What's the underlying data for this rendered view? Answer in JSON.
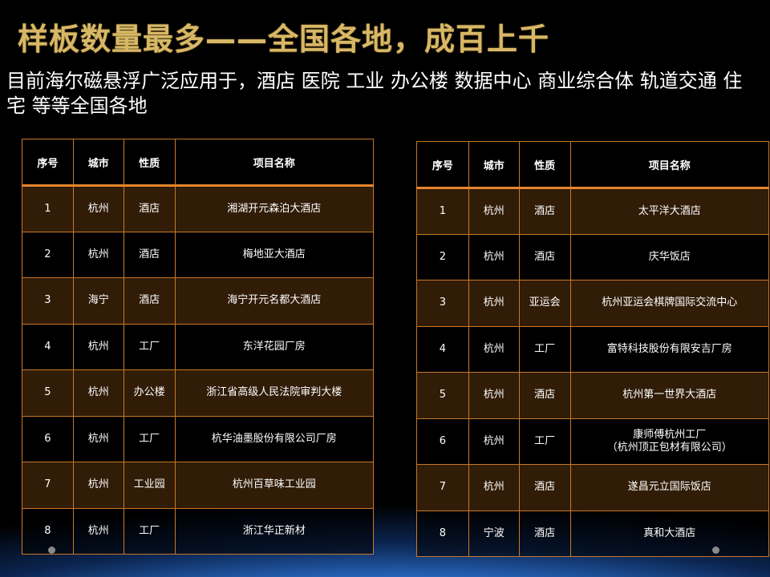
{
  "title": "样板数量最多——全国各地，成百上千",
  "subtitle": "目前海尔磁悬浮广泛应用于，酒店 医院 工业 办公楼 数据中心 商业综合体 轨道交通 住宅 等等全国各地",
  "headers": [
    "序号",
    "城市",
    "性质",
    "项目名称"
  ],
  "table_left": [
    [
      "1",
      "杭州",
      "酒店",
      "湘湖开元森泊大酒店"
    ],
    [
      "2",
      "杭州",
      "酒店",
      "梅地亚大酒店"
    ],
    [
      "3",
      "海宁",
      "酒店",
      "海宁开元名都大酒店"
    ],
    [
      "4",
      "杭州",
      "工厂",
      "东洋花园厂房"
    ],
    [
      "5",
      "杭州",
      "办公楼",
      "浙江省高级人民法院审判大楼"
    ],
    [
      "6",
      "杭州",
      "工厂",
      "杭华油墨股份有限公司厂房"
    ],
    [
      "7",
      "杭州",
      "工业园",
      "杭州百草味工业园"
    ],
    [
      "8",
      "杭州",
      "工厂",
      "浙江华正新材"
    ]
  ],
  "table_right": [
    [
      "1",
      "杭州",
      "酒店",
      "太平洋大酒店"
    ],
    [
      "2",
      "杭州",
      "酒店",
      "庆华饭店"
    ],
    [
      "3",
      "杭州",
      "亚运会",
      "杭州亚运会棋牌国际交流中心"
    ],
    [
      "4",
      "杭州",
      "工厂",
      "富特科技股份有限安吉厂房"
    ],
    [
      "5",
      "杭州",
      "酒店",
      "杭州第一世界大酒店"
    ],
    [
      "6",
      "杭州",
      "工厂",
      "康师傅杭州工厂\n（杭州顶正包材有限公司）"
    ],
    [
      "7",
      "杭州",
      "酒店",
      "遂昌元立国际饭店"
    ],
    [
      "8",
      "宁波",
      "酒店",
      "真和大酒店"
    ]
  ]
}
